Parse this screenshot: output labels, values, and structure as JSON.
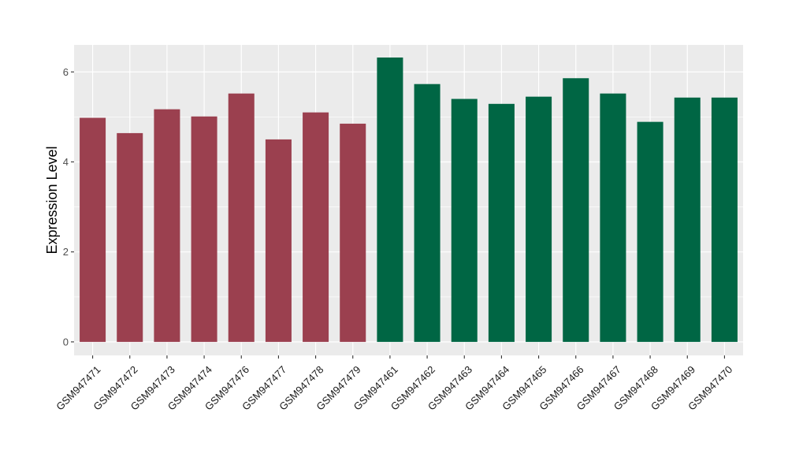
{
  "chart_data": {
    "type": "bar",
    "ylabel": "Expression Level",
    "xlabel": "",
    "ylim": [
      -0.3,
      6.6
    ],
    "yticks": [
      0,
      2,
      4,
      6
    ],
    "grid": true,
    "categories": [
      "GSM947471",
      "GSM947472",
      "GSM947473",
      "GSM947474",
      "GSM947476",
      "GSM947477",
      "GSM947478",
      "GSM947479",
      "GSM947461",
      "GSM947462",
      "GSM947463",
      "GSM947464",
      "GSM947465",
      "GSM947466",
      "GSM947467",
      "GSM947468",
      "GSM947469",
      "GSM947470"
    ],
    "values": [
      4.98,
      4.64,
      5.17,
      5.01,
      5.52,
      4.5,
      5.1,
      4.85,
      6.32,
      5.73,
      5.4,
      5.29,
      5.45,
      5.86,
      5.52,
      4.89,
      5.43,
      5.43
    ],
    "group_of_bar": [
      0,
      0,
      0,
      0,
      0,
      0,
      0,
      0,
      1,
      1,
      1,
      1,
      1,
      1,
      1,
      1,
      1,
      1
    ],
    "group_colors": [
      "#9b404f",
      "#006644"
    ],
    "panel_background": "#ebebeb"
  }
}
